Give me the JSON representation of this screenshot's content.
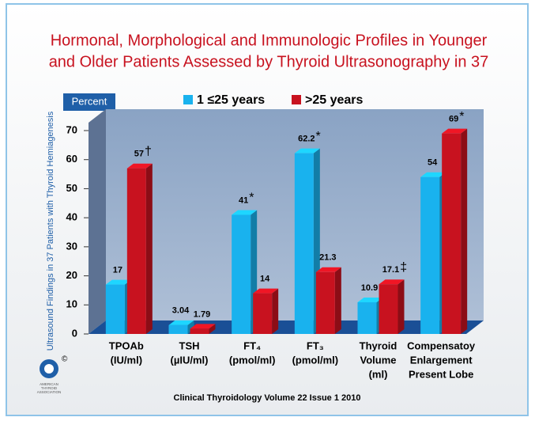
{
  "chart_data": {
    "type": "bar3d",
    "title": [
      "Hormonal, Morphological and Immunologic Profiles in Younger",
      "and Older Patients  Assessed by Thyroid Ultrasonography in 37"
    ],
    "unit_label": "Percent",
    "y_label": "Ultrasound Findings in 37 Patients with Thyroid Hemiagenesis",
    "categories": [
      [
        "TPOAb",
        "(IU/ml)"
      ],
      [
        "TSH",
        "(µIU/ml)"
      ],
      [
        "FT₄",
        "(pmol/ml)"
      ],
      [
        "FT₃",
        "(pmol/ml)"
      ],
      [
        "Thyroid",
        "Volume",
        "(ml)"
      ],
      [
        "Compensatoy",
        "Enlargement",
        "Present Lobe"
      ]
    ],
    "series": [
      {
        "name": "1 ≤25 years",
        "color": "#19b2ee",
        "values": [
          17,
          3.04,
          41,
          62.2,
          10.9,
          54
        ],
        "markers": [
          null,
          null,
          "*",
          "*",
          null,
          null
        ]
      },
      {
        "name": ">25 years",
        "color": "#c8121f",
        "values": [
          57,
          1.79,
          14,
          21.3,
          17.1,
          69
        ],
        "markers": [
          "†",
          null,
          null,
          null,
          "‡",
          "*"
        ]
      }
    ],
    "ylim": [
      0,
      70
    ],
    "yticks": [
      0,
      10,
      20,
      30,
      40,
      50,
      60,
      70
    ],
    "footer": "Clinical Thyroidology Volume 22 Issue 1 2010",
    "logo": [
      "AMERICAN",
      "THYROID",
      "ASSOCIATION"
    ]
  }
}
